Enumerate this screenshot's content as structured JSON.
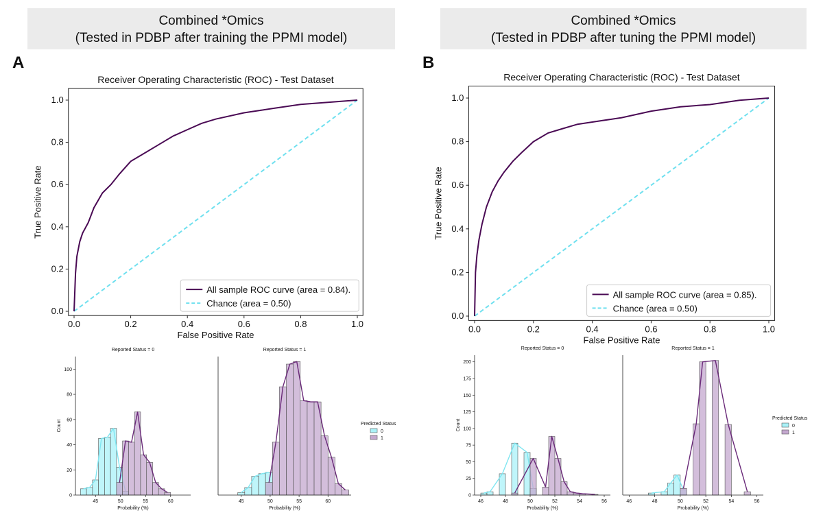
{
  "colors": {
    "roc": "#4a0a54",
    "chance": "#6fe0ef",
    "pred0": "#aaf2f8",
    "pred1": "#c4a8cf",
    "kde0": "#7fe6f1",
    "kde1": "#6a2a79",
    "overlap": "#5c8fb0"
  },
  "panels": [
    {
      "letter": "A",
      "header_line1": "Combined *Omics",
      "header_line2": "(Tested in PDBP after training the PPMI model)",
      "roc": {
        "title": "Receiver Operating Characteristic (ROC) - Test Dataset",
        "xlabel": "False Positive Rate",
        "ylabel": "True Positive Rate",
        "ticks": [
          "0.0",
          "0.2",
          "0.4",
          "0.6",
          "0.8",
          "1.0"
        ],
        "legend_roc": "All sample ROC curve (area = 0.84).",
        "legend_chance": "Chance (area = 0.50)"
      },
      "hist": {
        "xlabel": "Probability (%)",
        "ylabel": "Count",
        "left_title": "Reported Status = 0",
        "right_title": "Reported Status = 1",
        "legend_title": "Predicted Status",
        "legend_0": "0",
        "legend_1": "1",
        "yticks": [
          "0",
          "20",
          "40",
          "60",
          "80",
          "100"
        ],
        "left_xticks": [
          "45",
          "50",
          "55",
          "60"
        ],
        "right_xticks": [
          "45",
          "50",
          "55",
          "60"
        ]
      }
    },
    {
      "letter": "B",
      "header_line1": "Combined *Omics",
      "header_line2": "(Tested in PDBP after tuning the PPMI model)",
      "roc": {
        "title": "Receiver Operating Characteristic (ROC) - Test Dataset",
        "xlabel": "False Positive Rate",
        "ylabel": "True Positive Rate",
        "ticks": [
          "0.0",
          "0.2",
          "0.4",
          "0.6",
          "0.8",
          "1.0"
        ],
        "legend_roc": "All sample ROC curve (area = 0.85).",
        "legend_chance": "Chance (area = 0.50)"
      },
      "hist": {
        "xlabel": "Probability (%)",
        "ylabel": "Count",
        "left_title": "Reported Status = 0",
        "right_title": "Reported Status = 1",
        "legend_title": "Predicted Status",
        "legend_0": "0",
        "legend_1": "1",
        "yticks": [
          "0",
          "25",
          "50",
          "75",
          "100",
          "125",
          "150",
          "175",
          "200"
        ],
        "left_xticks": [
          "46",
          "48",
          "50",
          "52",
          "54",
          "56"
        ],
        "right_xticks": [
          "46",
          "48",
          "50",
          "52",
          "54",
          "56"
        ]
      }
    }
  ],
  "chart_data": [
    {
      "type": "line",
      "title": "Receiver Operating Characteristic (ROC) - Test Dataset",
      "xlabel": "False Positive Rate",
      "ylabel": "True Positive Rate",
      "xlim": [
        0,
        1
      ],
      "ylim": [
        0,
        1
      ],
      "series": [
        {
          "name": "All sample ROC curve (area = 0.84).",
          "x": [
            0,
            0.005,
            0.01,
            0.02,
            0.03,
            0.05,
            0.07,
            0.1,
            0.13,
            0.16,
            0.2,
            0.25,
            0.3,
            0.35,
            0.4,
            0.45,
            0.5,
            0.6,
            0.7,
            0.8,
            0.9,
            1.0
          ],
          "y": [
            0,
            0.18,
            0.26,
            0.33,
            0.37,
            0.42,
            0.49,
            0.56,
            0.6,
            0.65,
            0.71,
            0.75,
            0.79,
            0.83,
            0.86,
            0.89,
            0.91,
            0.94,
            0.96,
            0.98,
            0.99,
            1.0
          ]
        },
        {
          "name": "Chance (area = 0.50)",
          "x": [
            0,
            1
          ],
          "y": [
            0,
            1
          ]
        }
      ],
      "legend": "lower-right"
    },
    {
      "type": "line",
      "title": "Receiver Operating Characteristic (ROC) - Test Dataset",
      "xlabel": "False Positive Rate",
      "ylabel": "True Positive Rate",
      "xlim": [
        0,
        1
      ],
      "ylim": [
        0,
        1
      ],
      "series": [
        {
          "name": "All sample ROC curve (area = 0.85).",
          "x": [
            0,
            0.003,
            0.008,
            0.015,
            0.025,
            0.04,
            0.06,
            0.08,
            0.1,
            0.13,
            0.16,
            0.2,
            0.25,
            0.3,
            0.35,
            0.4,
            0.5,
            0.6,
            0.7,
            0.8,
            0.9,
            1.0
          ],
          "y": [
            0,
            0.2,
            0.28,
            0.35,
            0.42,
            0.5,
            0.57,
            0.62,
            0.66,
            0.71,
            0.75,
            0.8,
            0.84,
            0.86,
            0.88,
            0.89,
            0.91,
            0.94,
            0.96,
            0.97,
            0.99,
            1.0
          ]
        },
        {
          "name": "Chance (area = 0.50)",
          "x": [
            0,
            1
          ],
          "y": [
            0,
            1
          ]
        }
      ],
      "legend": "lower-right"
    },
    {
      "type": "bar",
      "title": "Reported Status = 0",
      "xlabel": "Probability (%)",
      "ylabel": "Count",
      "xlim": [
        41,
        64
      ],
      "ylim": [
        0,
        110
      ],
      "bin_width": 1.2,
      "series": [
        {
          "name": "0",
          "bin_starts": [
            42,
            43.2,
            44.4,
            45.6,
            46.8,
            48.0,
            49.2,
            50.4
          ],
          "values": [
            5,
            6,
            12,
            45,
            46,
            53,
            22,
            3
          ]
        },
        {
          "name": "1",
          "bin_starts": [
            49.2,
            50.4,
            51.6,
            52.8,
            54.0,
            55.2,
            56.4,
            57.6,
            58.8
          ],
          "values": [
            10,
            43,
            42,
            66,
            32,
            26,
            10,
            5,
            2
          ]
        }
      ]
    },
    {
      "type": "bar",
      "title": "Reported Status = 1",
      "xlabel": "Probability (%)",
      "ylabel": "Count",
      "xlim": [
        41,
        64
      ],
      "ylim": [
        0,
        110
      ],
      "bin_width": 1.2,
      "series": [
        {
          "name": "0",
          "bin_starts": [
            44.4,
            45.6,
            46.8,
            48.0,
            49.2
          ],
          "values": [
            2,
            6,
            15,
            17,
            18
          ]
        },
        {
          "name": "1",
          "bin_starts": [
            49.2,
            50.4,
            51.6,
            52.8,
            54.0,
            55.2,
            56.4,
            57.6,
            58.8,
            60.0,
            61.2,
            62.4
          ],
          "values": [
            10,
            42,
            86,
            104,
            106,
            75,
            74,
            74,
            47,
            30,
            9,
            4
          ]
        }
      ]
    },
    {
      "type": "bar",
      "title": "Reported Status = 0",
      "xlabel": "Probability (%)",
      "ylabel": "Count",
      "xlim": [
        45.5,
        56.5
      ],
      "ylim": [
        0,
        210
      ],
      "bin_width": 0.5,
      "series": [
        {
          "name": "0",
          "bin_starts": [
            46,
            46.5,
            47.5,
            48.5,
            49.5,
            50
          ],
          "values": [
            3,
            5,
            32,
            78,
            64,
            10
          ]
        },
        {
          "name": "1",
          "bin_starts": [
            48.5,
            50,
            51,
            51.5,
            52,
            52.5,
            53,
            53.5,
            54,
            55
          ],
          "values": [
            3,
            55,
            12,
            88,
            55,
            20,
            5,
            3,
            2,
            1
          ]
        }
      ]
    },
    {
      "type": "bar",
      "title": "Reported Status = 1",
      "xlabel": "Probability (%)",
      "ylabel": "Count",
      "xlim": [
        45.5,
        56.5
      ],
      "ylim": [
        0,
        210
      ],
      "bin_width": 0.5,
      "series": [
        {
          "name": "0",
          "bin_starts": [
            47.5,
            48.5,
            49,
            49.5,
            50
          ],
          "values": [
            3,
            5,
            18,
            30,
            8
          ]
        },
        {
          "name": "1",
          "bin_starts": [
            50,
            51,
            51.5,
            52.5,
            53.5,
            55
          ],
          "values": [
            10,
            107,
            200,
            202,
            106,
            5
          ]
        }
      ]
    }
  ]
}
